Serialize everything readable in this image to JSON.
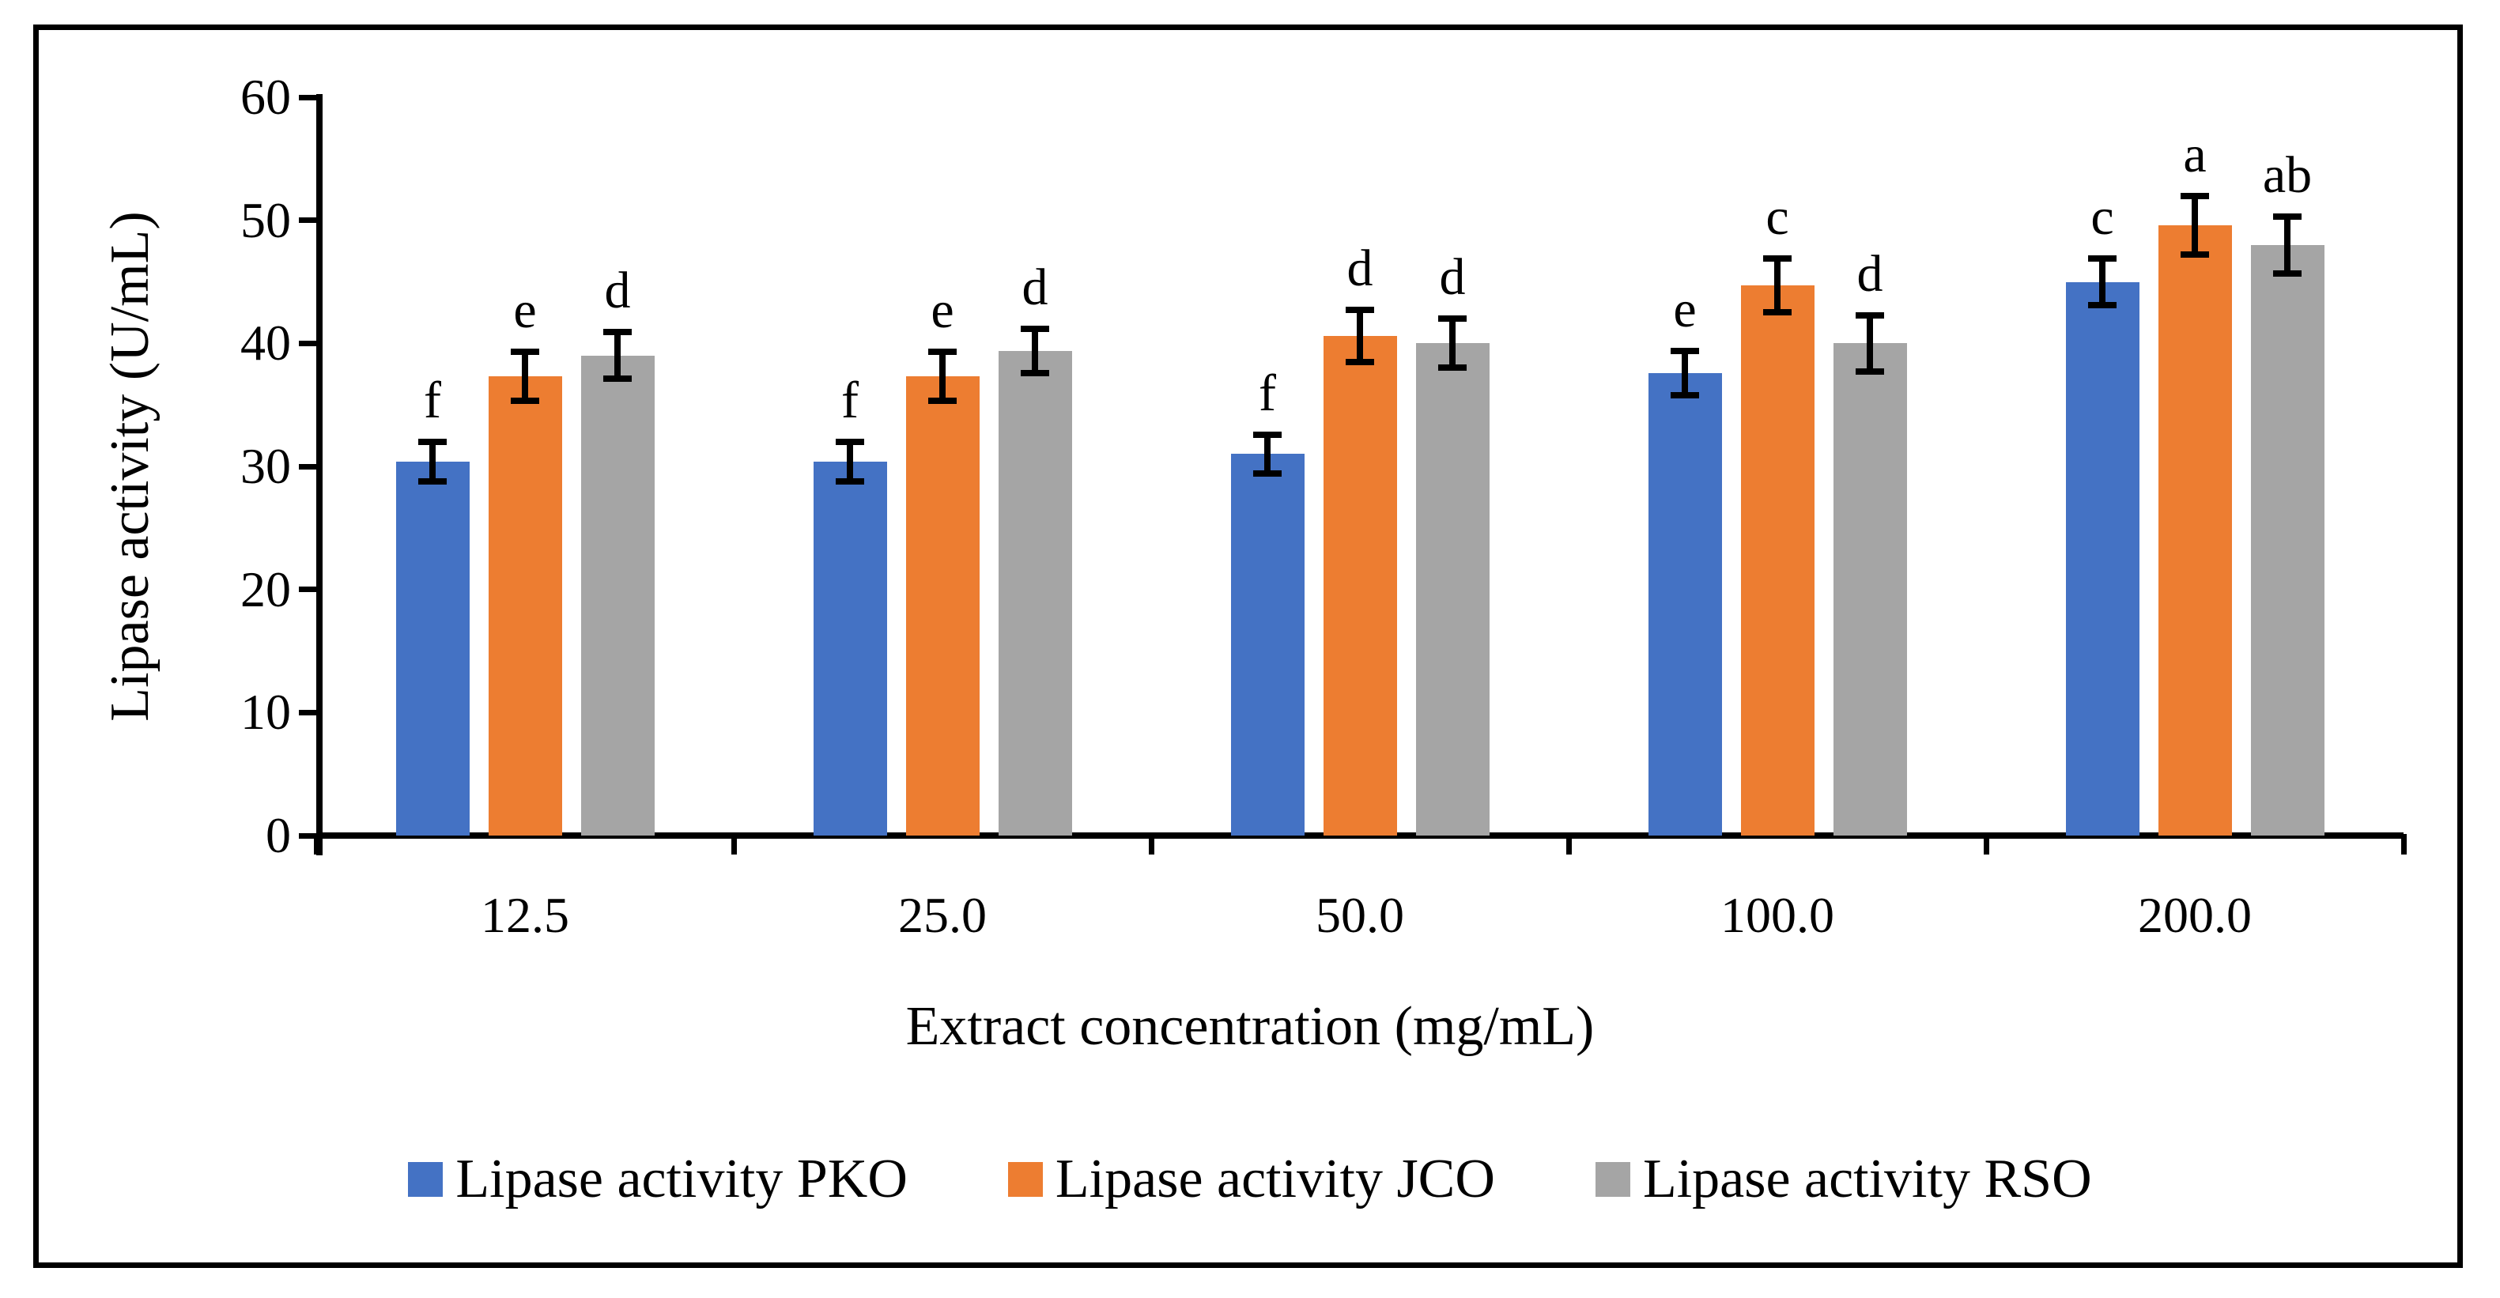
{
  "figure": {
    "y_axis_title": "Lipase activity (U/mL)",
    "x_axis_title": "Extract concentration (mg/mL)",
    "y_tick_labels": [
      "0",
      "10",
      "20",
      "30",
      "40",
      "50",
      "60"
    ],
    "x_tick_labels": [
      "12.5",
      "25.0",
      "50.0",
      "100.0",
      "200.0"
    ],
    "legend_labels": [
      "Lipase activity PKO",
      "Lipase activity JCO",
      "Lipase activity RSO"
    ],
    "colors": {
      "pko": "#4472C4",
      "jco": "#ED7D31",
      "rso": "#A5A5A5",
      "axis": "#000000"
    }
  },
  "chart_data": {
    "type": "bar",
    "title": "",
    "xlabel": "Extract concentration (mg/mL)",
    "ylabel": "Lipase activity (U/mL)",
    "categories": [
      "12.5",
      "25.0",
      "50.0",
      "100.0",
      "200.0"
    ],
    "series": [
      {
        "name": "Lipase activity PKO",
        "color": "#4472C4",
        "values": [
          30.4,
          30.4,
          31.0,
          37.6,
          45.0
        ],
        "errors": [
          1.6,
          1.6,
          1.6,
          1.8,
          1.9
        ],
        "sig_letters": [
          "f",
          "f",
          "f",
          "e",
          "c"
        ]
      },
      {
        "name": "Lipase activity JCO",
        "color": "#ED7D31",
        "values": [
          37.3,
          37.3,
          40.6,
          44.7,
          49.6
        ],
        "errors": [
          2.0,
          2.0,
          2.1,
          2.2,
          2.4
        ],
        "sig_letters": [
          "e",
          "e",
          "d",
          "c",
          "a"
        ]
      },
      {
        "name": "Lipase activity RSO",
        "color": "#A5A5A5",
        "values": [
          39.0,
          39.4,
          40.0,
          40.0,
          48.0
        ],
        "errors": [
          1.9,
          1.8,
          2.0,
          2.3,
          2.3
        ],
        "sig_letters": [
          "d",
          "d",
          "d",
          "d",
          "ab"
        ]
      }
    ],
    "ylim": [
      0,
      60
    ],
    "ytick_step": 10,
    "grid": false,
    "error_bars": true,
    "legend_position": "bottom",
    "annotations": "significance letters above error bars"
  }
}
